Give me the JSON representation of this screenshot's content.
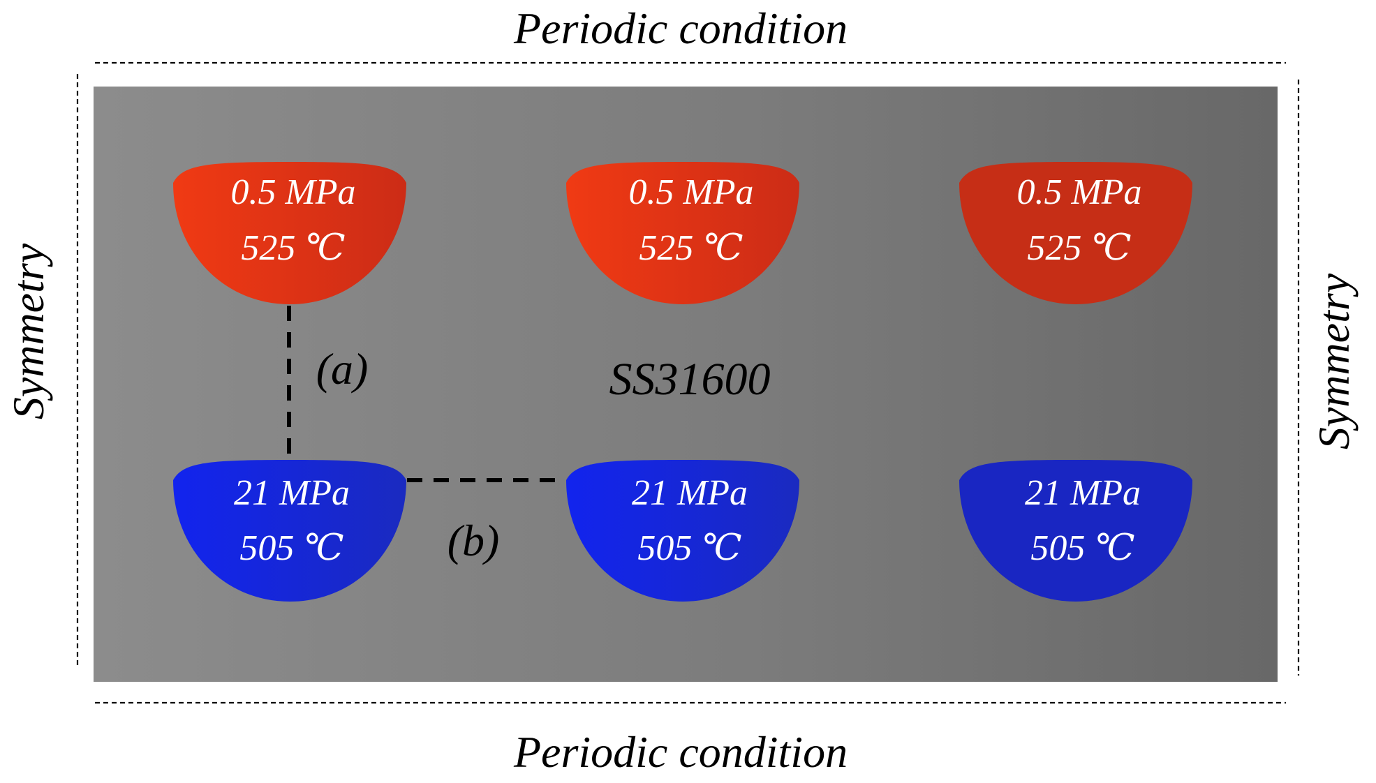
{
  "boundary_labels": {
    "top": "Periodic condition",
    "bottom": "Periodic condition",
    "left": "Symmetry",
    "right": "Symmetry"
  },
  "material_label": "SS31600",
  "channels": {
    "top_row": [
      {
        "pressure": "0.5 MPa",
        "temperature": "525 ℃"
      },
      {
        "pressure": "0.5 MPa",
        "temperature": "525 ℃"
      },
      {
        "pressure": "0.5 MPa",
        "temperature": "525 ℃"
      }
    ],
    "bottom_row": [
      {
        "pressure": "21 MPa",
        "temperature": "505 ℃"
      },
      {
        "pressure": "21 MPa",
        "temperature": "505 ℃"
      },
      {
        "pressure": "21 MPa",
        "temperature": "505 ℃"
      }
    ]
  },
  "path_labels": {
    "vertical": "(a)",
    "horizontal": "(b)"
  },
  "colors": {
    "hot_channel": "#e8361a",
    "cold_channel": "#1a28e6",
    "plate_light": "#8e8e8e",
    "plate_dark": "#6a6a6a"
  }
}
